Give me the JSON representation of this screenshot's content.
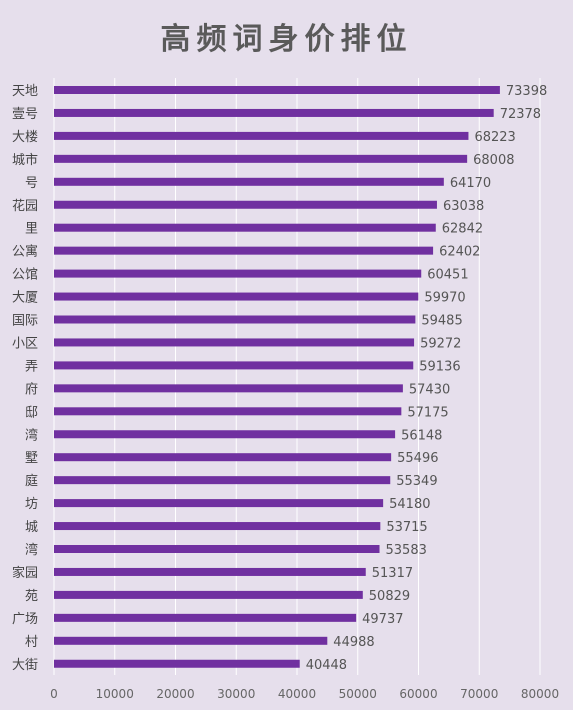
{
  "chart_data": {
    "type": "bar",
    "orientation": "horizontal",
    "title": "高频词身价排位",
    "categories": [
      "天地",
      "壹号",
      "大楼",
      "城市",
      "号",
      "花园",
      "里",
      "公寓",
      "公馆",
      "大厦",
      "国际",
      "小区",
      "弄",
      "府",
      "邸",
      "湾",
      "墅",
      "庭",
      "坊",
      "城",
      "湾",
      "家园",
      "苑",
      "广场",
      "村",
      "大街"
    ],
    "values": [
      73398,
      72378,
      68223,
      68008,
      64170,
      63038,
      62842,
      62402,
      60451,
      59970,
      59485,
      59272,
      59136,
      57430,
      57175,
      56148,
      55496,
      55349,
      54180,
      53715,
      53583,
      51317,
      50829,
      49737,
      44988,
      40448
    ],
    "xticks": [
      "0",
      "10000",
      "20000",
      "30000",
      "40000",
      "50000",
      "60000",
      "70000",
      "80000"
    ],
    "xlim": [
      0,
      80000
    ],
    "grid": "vertical",
    "bar_color": "#7030a0",
    "grid_color": "#ffffff",
    "background": "#e6dfec"
  }
}
